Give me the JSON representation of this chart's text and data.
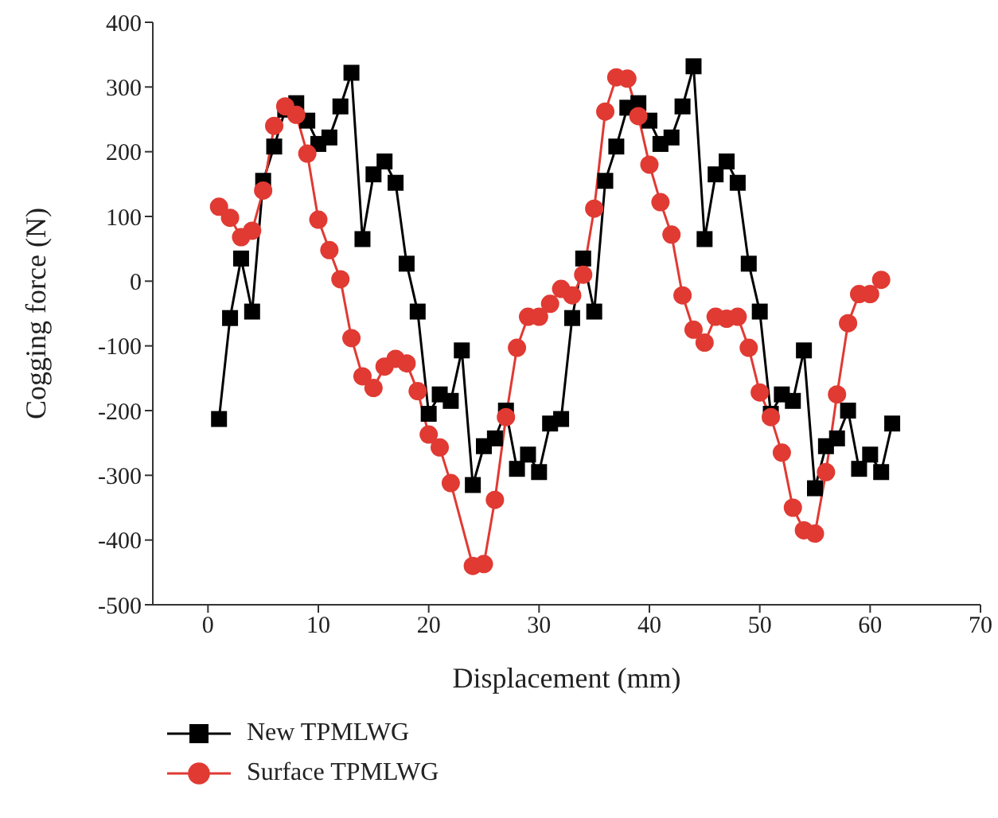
{
  "chart_data": {
    "type": "line",
    "xlabel": "Displacement (mm)",
    "ylabel": "Cogging force (N)",
    "xlim": [
      -5,
      70
    ],
    "xticks": [
      0,
      10,
      20,
      30,
      40,
      50,
      60,
      70
    ],
    "ylim": [
      -500,
      400
    ],
    "yticks": [
      -500,
      -400,
      -300,
      -200,
      -100,
      0,
      100,
      200,
      300,
      400
    ],
    "grid": false,
    "legend": "bottom left",
    "line_style": "solid",
    "series": [
      {
        "name": "New TPMLWG",
        "color": "#000000",
        "marker": "square",
        "x": [
          1,
          2,
          3,
          4,
          5,
          6,
          7,
          8,
          9,
          10,
          11,
          12,
          13,
          14,
          15,
          16,
          17,
          18,
          19,
          20,
          21,
          22,
          23,
          24,
          25,
          26,
          27,
          28,
          29,
          30,
          31,
          32,
          33,
          34,
          35,
          36,
          37,
          38,
          39,
          40,
          41,
          42,
          43,
          44,
          45,
          46,
          47,
          48,
          49,
          50,
          51,
          52,
          53,
          54,
          55,
          56,
          57,
          58,
          59,
          60,
          61,
          62
        ],
        "values": [
          -213,
          -57,
          35,
          -47,
          155,
          208,
          265,
          275,
          248,
          212,
          222,
          270,
          322,
          65,
          165,
          185,
          152,
          27,
          -47,
          -205,
          -175,
          -185,
          -107,
          -315,
          -255,
          -243,
          -200,
          -290,
          -268,
          -295,
          -220,
          -213,
          -57,
          35,
          -47,
          155,
          208,
          268,
          275,
          248,
          212,
          222,
          270,
          332,
          65,
          165,
          185,
          152,
          27,
          -47,
          -205,
          -175,
          -185,
          -107,
          -320,
          -255,
          -243,
          -200,
          -290,
          -268,
          -295,
          -220
        ]
      },
      {
        "name": "Surface TPMLWG",
        "color": "#e03a33",
        "marker": "circle",
        "x": [
          1,
          2,
          3,
          4,
          5,
          6,
          7,
          8,
          9,
          10,
          11,
          12,
          13,
          14,
          15,
          16,
          17,
          18,
          19,
          20,
          21,
          22,
          24,
          25,
          26,
          27,
          28,
          29,
          30,
          31,
          32,
          33,
          34,
          35,
          36,
          37,
          38,
          39,
          40,
          41,
          42,
          43,
          44,
          45,
          46,
          47,
          48,
          49,
          50,
          51,
          52,
          53,
          54,
          55,
          56,
          57,
          58,
          59,
          60,
          61
        ],
        "values": [
          115,
          98,
          68,
          78,
          140,
          240,
          270,
          257,
          197,
          95,
          48,
          3,
          -88,
          -147,
          -165,
          -132,
          -120,
          -127,
          -170,
          -237,
          -257,
          -312,
          -440,
          -437,
          -338,
          -210,
          -103,
          -55,
          -55,
          -35,
          -12,
          -22,
          10,
          112,
          262,
          315,
          313,
          255,
          180,
          122,
          72,
          -22,
          -75,
          -95,
          -55,
          -58,
          -55,
          -103,
          -172,
          -210,
          -265,
          -350,
          -385,
          -390,
          -295,
          -175,
          -65,
          -20,
          -20,
          2
        ]
      }
    ]
  }
}
